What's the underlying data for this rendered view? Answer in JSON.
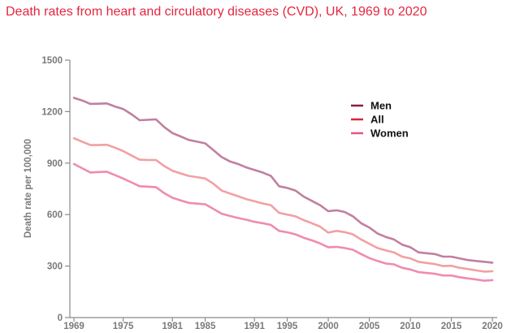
{
  "chart_data": {
    "type": "line",
    "title": "Death rates from heart and circulatory diseases (CVD), UK, 1969 to 2020",
    "ylabel": "Death rate per 100,000",
    "xlabel": "",
    "ylim": [
      0,
      1500
    ],
    "xlim": [
      1969,
      2020
    ],
    "yticks": [
      0,
      300,
      600,
      900,
      1200,
      1500
    ],
    "xticks": [
      1969,
      1975,
      1981,
      1985,
      1991,
      1995,
      2000,
      2005,
      2010,
      2015,
      2020
    ],
    "grid": false,
    "legend_position": "top-right",
    "colors": {
      "Men": "#c0809f",
      "All": "#f2a0a2",
      "Women": "#ef8bb1",
      "title": "#e4263f",
      "axis": "#8a8a8a"
    },
    "legend_colors": {
      "Men": "#8b1c3e",
      "All": "#d8243b",
      "Women": "#ec4f86"
    },
    "x": [
      1969,
      1970,
      1971,
      1972,
      1973,
      1974,
      1975,
      1976,
      1977,
      1978,
      1979,
      1980,
      1981,
      1982,
      1983,
      1984,
      1985,
      1986,
      1987,
      1988,
      1989,
      1990,
      1991,
      1992,
      1993,
      1994,
      1995,
      1996,
      1997,
      1998,
      1999,
      2000,
      2001,
      2002,
      2003,
      2004,
      2005,
      2006,
      2007,
      2008,
      2009,
      2010,
      2011,
      2012,
      2013,
      2014,
      2015,
      2016,
      2017,
      2018,
      2019,
      2020
    ],
    "series": [
      {
        "name": "Men",
        "values": [
          1280,
          1265,
          1245,
          1246,
          1248,
          1230,
          1215,
          1185,
          1150,
          1152,
          1155,
          1110,
          1075,
          1055,
          1035,
          1025,
          1015,
          975,
          935,
          910,
          895,
          875,
          860,
          845,
          825,
          765,
          755,
          740,
          705,
          680,
          655,
          620,
          625,
          615,
          590,
          550,
          525,
          490,
          470,
          455,
          425,
          410,
          380,
          375,
          370,
          355,
          355,
          345,
          335,
          330,
          325,
          320
        ]
      },
      {
        "name": "All",
        "values": [
          1045,
          1025,
          1005,
          1005,
          1007,
          990,
          970,
          945,
          920,
          918,
          918,
          883,
          855,
          840,
          825,
          818,
          810,
          780,
          740,
          723,
          707,
          690,
          678,
          665,
          655,
          610,
          600,
          590,
          568,
          550,
          530,
          495,
          505,
          498,
          485,
          455,
          430,
          405,
          392,
          380,
          355,
          345,
          325,
          318,
          312,
          300,
          302,
          290,
          283,
          275,
          268,
          270
        ]
      },
      {
        "name": "Women",
        "values": [
          895,
          870,
          845,
          848,
          850,
          830,
          810,
          788,
          765,
          763,
          760,
          725,
          698,
          683,
          668,
          664,
          660,
          633,
          605,
          592,
          580,
          570,
          558,
          550,
          540,
          505,
          497,
          485,
          465,
          450,
          432,
          410,
          412,
          405,
          395,
          370,
          347,
          330,
          315,
          310,
          290,
          280,
          265,
          260,
          255,
          245,
          245,
          235,
          228,
          222,
          215,
          218
        ]
      }
    ]
  }
}
